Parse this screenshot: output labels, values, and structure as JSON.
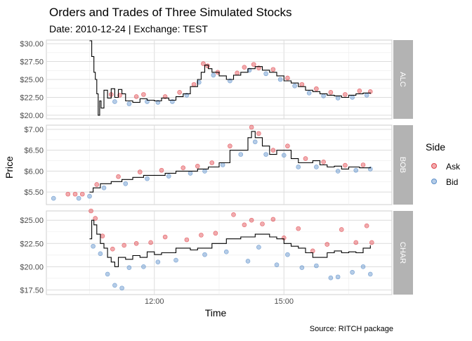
{
  "title": "Orders and Trades of Three Simulated Stocks",
  "subtitle": "Date: 2010-12-24 | Exchange: TEST",
  "caption": "Source: RITCH package",
  "colors": {
    "ask": "#e0454b",
    "bid": "#5b8fc9",
    "trade": "#000000",
    "strip_bg": "#b3b3b3",
    "grid": "#dcdcdc"
  },
  "chart_data": {
    "type": "scatter",
    "xlabel": "Time",
    "ylabel": "Price",
    "x_ticks": [
      "12:00",
      "15:00"
    ],
    "x_range": [
      "09:30",
      "17:30"
    ],
    "legend": {
      "title": "Side",
      "entries": [
        "Ask",
        "Bid"
      ],
      "position": "right"
    },
    "grid": true,
    "panels": [
      {
        "name": "ALC",
        "ylim": [
          19.5,
          30.5
        ],
        "y_ticks": [
          20.0,
          22.5,
          25.0,
          27.5,
          30.0
        ],
        "y_tick_labels": [
          "$20.00",
          "$22.50",
          "$25.00",
          "$27.50",
          "$30.00"
        ],
        "trade": [
          [
            "10:30",
            30.4
          ],
          [
            "10:33",
            28.2
          ],
          [
            "10:36",
            26.0
          ],
          [
            "10:38",
            25.0
          ],
          [
            "10:40",
            23.0
          ],
          [
            "10:42",
            20.0
          ],
          [
            "10:44",
            22.0
          ],
          [
            "10:46",
            21.0
          ],
          [
            "10:50",
            23.5
          ],
          [
            "10:55",
            22.4
          ],
          [
            "11:00",
            23.7
          ],
          [
            "11:05",
            22.5
          ],
          [
            "11:10",
            23.6
          ],
          [
            "11:15",
            23.0
          ],
          [
            "11:20",
            22.0
          ],
          [
            "11:30",
            21.8
          ],
          [
            "11:40",
            22.3
          ],
          [
            "11:50",
            22.1
          ],
          [
            "12:00",
            22.0
          ],
          [
            "12:10",
            22.4
          ],
          [
            "12:20",
            22.1
          ],
          [
            "12:30",
            22.6
          ],
          [
            "12:40",
            23.0
          ],
          [
            "12:50",
            24.0
          ],
          [
            "13:00",
            25.0
          ],
          [
            "13:05",
            26.0
          ],
          [
            "13:10",
            27.0
          ],
          [
            "13:15",
            26.5
          ],
          [
            "13:20",
            26.0
          ],
          [
            "13:30",
            25.5
          ],
          [
            "13:40",
            25.0
          ],
          [
            "13:50",
            25.6
          ],
          [
            "14:00",
            26.0
          ],
          [
            "14:10",
            26.5
          ],
          [
            "14:20",
            26.8
          ],
          [
            "14:30",
            26.3
          ],
          [
            "14:40",
            26.0
          ],
          [
            "14:50",
            25.5
          ],
          [
            "15:00",
            24.8
          ],
          [
            "15:10",
            24.5
          ],
          [
            "15:20",
            24.0
          ],
          [
            "15:30",
            23.5
          ],
          [
            "15:40",
            23.3
          ],
          [
            "15:50",
            23.0
          ],
          [
            "16:00",
            22.8
          ],
          [
            "16:10",
            22.7
          ],
          [
            "16:20",
            22.5
          ],
          [
            "16:30",
            22.8
          ],
          [
            "16:40",
            23.0
          ],
          [
            "16:50",
            23.1
          ],
          [
            "17:00",
            23.0
          ]
        ],
        "ask": [
          [
            "11:00",
            22.9
          ],
          [
            "11:12",
            22.8
          ],
          [
            "11:35",
            22.6
          ],
          [
            "11:45",
            22.9
          ],
          [
            "12:15",
            22.6
          ],
          [
            "12:35",
            23.2
          ],
          [
            "12:55",
            24.3
          ],
          [
            "13:08",
            27.2
          ],
          [
            "13:14",
            26.9
          ],
          [
            "13:28",
            26.0
          ],
          [
            "13:55",
            25.9
          ],
          [
            "14:05",
            26.7
          ],
          [
            "14:18",
            27.1
          ],
          [
            "14:25",
            26.6
          ],
          [
            "14:45",
            26.4
          ],
          [
            "15:05",
            25.2
          ],
          [
            "15:25",
            24.3
          ],
          [
            "15:45",
            23.7
          ],
          [
            "16:05",
            23.2
          ],
          [
            "16:25",
            22.9
          ],
          [
            "16:45",
            23.4
          ],
          [
            "17:00",
            23.3
          ]
        ],
        "bid": [
          [
            "11:05",
            21.9
          ],
          [
            "11:25",
            21.6
          ],
          [
            "11:50",
            21.9
          ],
          [
            "12:05",
            21.8
          ],
          [
            "12:25",
            21.9
          ],
          [
            "12:45",
            22.8
          ],
          [
            "13:02",
            24.6
          ],
          [
            "13:22",
            25.6
          ],
          [
            "13:45",
            24.8
          ],
          [
            "14:12",
            26.3
          ],
          [
            "14:35",
            25.8
          ],
          [
            "14:55",
            25.0
          ],
          [
            "15:15",
            24.1
          ],
          [
            "15:35",
            23.1
          ],
          [
            "15:55",
            22.7
          ],
          [
            "16:15",
            22.4
          ],
          [
            "16:35",
            22.5
          ],
          [
            "16:55",
            22.8
          ]
        ]
      },
      {
        "name": "BOB",
        "ylim": [
          5.2,
          7.1
        ],
        "y_ticks": [
          5.5,
          6.0,
          6.5,
          7.0
        ],
        "y_tick_labels": [
          "$5.50",
          "$6.00",
          "$6.50",
          "$7.00"
        ],
        "trade": [
          [
            "10:30",
            5.5
          ],
          [
            "10:35",
            5.6
          ],
          [
            "10:45",
            5.7
          ],
          [
            "11:00",
            5.75
          ],
          [
            "11:15",
            5.8
          ],
          [
            "11:30",
            5.85
          ],
          [
            "11:45",
            5.9
          ],
          [
            "12:00",
            5.9
          ],
          [
            "12:15",
            5.95
          ],
          [
            "12:30",
            6.0
          ],
          [
            "12:45",
            6.0
          ],
          [
            "13:00",
            6.05
          ],
          [
            "13:15",
            6.1
          ],
          [
            "13:30",
            6.2
          ],
          [
            "13:45",
            6.5
          ],
          [
            "14:00",
            6.5
          ],
          [
            "14:10",
            6.8
          ],
          [
            "14:15",
            6.95
          ],
          [
            "14:20",
            6.8
          ],
          [
            "14:30",
            6.6
          ],
          [
            "14:40",
            6.4
          ],
          [
            "14:50",
            6.5
          ],
          [
            "15:00",
            6.5
          ],
          [
            "15:10",
            6.3
          ],
          [
            "15:20",
            6.2
          ],
          [
            "15:30",
            6.2
          ],
          [
            "15:40",
            6.25
          ],
          [
            "15:50",
            6.15
          ],
          [
            "16:00",
            6.1
          ],
          [
            "16:10",
            6.12
          ],
          [
            "16:20",
            6.05
          ],
          [
            "16:30",
            6.1
          ],
          [
            "16:45",
            6.08
          ],
          [
            "17:00",
            6.1
          ]
        ],
        "ask": [
          [
            "10:00",
            5.45
          ],
          [
            "10:10",
            5.45
          ],
          [
            "10:20",
            5.45
          ],
          [
            "10:40",
            5.68
          ],
          [
            "11:10",
            5.87
          ],
          [
            "11:40",
            5.98
          ],
          [
            "12:10",
            6.02
          ],
          [
            "12:40",
            6.08
          ],
          [
            "13:00",
            6.12
          ],
          [
            "13:20",
            6.2
          ],
          [
            "13:45",
            6.6
          ],
          [
            "14:15",
            7.05
          ],
          [
            "14:25",
            6.9
          ],
          [
            "14:45",
            6.5
          ],
          [
            "15:05",
            6.6
          ],
          [
            "15:30",
            6.3
          ],
          [
            "15:55",
            6.22
          ],
          [
            "16:25",
            6.14
          ],
          [
            "16:50",
            6.15
          ]
        ],
        "bid": [
          [
            "09:40",
            5.35
          ],
          [
            "10:15",
            5.35
          ],
          [
            "10:30",
            5.4
          ],
          [
            "10:50",
            5.6
          ],
          [
            "11:20",
            5.7
          ],
          [
            "11:50",
            5.82
          ],
          [
            "12:20",
            5.88
          ],
          [
            "12:50",
            5.95
          ],
          [
            "13:10",
            6.0
          ],
          [
            "13:35",
            6.15
          ],
          [
            "14:00",
            6.4
          ],
          [
            "14:20",
            6.7
          ],
          [
            "14:35",
            6.4
          ],
          [
            "15:00",
            6.38
          ],
          [
            "15:20",
            6.1
          ],
          [
            "15:45",
            6.1
          ],
          [
            "16:15",
            6.0
          ],
          [
            "16:40",
            6.02
          ],
          [
            "17:00",
            6.05
          ]
        ]
      },
      {
        "name": "CHAR",
        "ylim": [
          17.0,
          26.0
        ],
        "y_ticks": [
          17.5,
          20.0,
          22.5,
          25.0
        ],
        "y_tick_labels": [
          "$17.50",
          "$20.00",
          "$22.50",
          "$25.00"
        ],
        "trade": [
          [
            "10:30",
            23.0
          ],
          [
            "10:33",
            25.0
          ],
          [
            "10:36",
            24.5
          ],
          [
            "10:40",
            23.5
          ],
          [
            "10:45",
            22.5
          ],
          [
            "10:50",
            22.0
          ],
          [
            "10:55",
            21.0
          ],
          [
            "11:00",
            20.5
          ],
          [
            "11:05",
            20.0
          ],
          [
            "11:10",
            21.0
          ],
          [
            "11:20",
            20.8
          ],
          [
            "11:30",
            21.2
          ],
          [
            "11:40",
            21.0
          ],
          [
            "11:50",
            21.6
          ],
          [
            "12:00",
            21.3
          ],
          [
            "12:10",
            21.5
          ],
          [
            "12:30",
            22.0
          ],
          [
            "12:50",
            21.8
          ],
          [
            "13:00",
            22.0
          ],
          [
            "13:20",
            22.5
          ],
          [
            "13:40",
            23.0
          ],
          [
            "14:00",
            23.2
          ],
          [
            "14:20",
            23.5
          ],
          [
            "14:40",
            23.2
          ],
          [
            "14:50",
            23.0
          ],
          [
            "15:00",
            22.5
          ],
          [
            "15:10",
            22.2
          ],
          [
            "15:20",
            22.0
          ],
          [
            "15:30",
            21.5
          ],
          [
            "15:40",
            21.0
          ],
          [
            "15:50",
            21.0
          ],
          [
            "16:00",
            21.5
          ],
          [
            "16:10",
            21.7
          ],
          [
            "16:20",
            21.5
          ],
          [
            "16:30",
            21.6
          ],
          [
            "16:40",
            21.5
          ],
          [
            "16:50",
            22.0
          ],
          [
            "17:00",
            22.3
          ]
        ],
        "ask": [
          [
            "10:32",
            26.0
          ],
          [
            "10:38",
            25.2
          ],
          [
            "10:48",
            23.3
          ],
          [
            "11:02",
            21.9
          ],
          [
            "11:18",
            22.3
          ],
          [
            "11:35",
            22.5
          ],
          [
            "11:55",
            22.6
          ],
          [
            "12:15",
            23.2
          ],
          [
            "12:45",
            22.9
          ],
          [
            "13:05",
            23.4
          ],
          [
            "13:25",
            23.6
          ],
          [
            "13:50",
            25.6
          ],
          [
            "14:05",
            24.5
          ],
          [
            "14:15",
            25.0
          ],
          [
            "14:30",
            24.6
          ],
          [
            "14:45",
            25.1
          ],
          [
            "15:00",
            23.1
          ],
          [
            "15:20",
            24.1
          ],
          [
            "15:40",
            21.7
          ],
          [
            "16:00",
            22.4
          ],
          [
            "16:20",
            24.0
          ],
          [
            "16:40",
            22.6
          ],
          [
            "16:55",
            24.4
          ],
          [
            "17:02",
            22.6
          ]
        ],
        "bid": [
          [
            "10:35",
            22.2
          ],
          [
            "10:45",
            21.4
          ],
          [
            "10:55",
            19.2
          ],
          [
            "11:05",
            18.0
          ],
          [
            "11:15",
            17.7
          ],
          [
            "11:25",
            19.9
          ],
          [
            "11:45",
            20.0
          ],
          [
            "12:05",
            20.5
          ],
          [
            "12:30",
            20.7
          ],
          [
            "13:10",
            21.3
          ],
          [
            "13:40",
            21.6
          ],
          [
            "14:10",
            20.6
          ],
          [
            "14:25",
            22.1
          ],
          [
            "14:50",
            20.2
          ],
          [
            "15:05",
            21.3
          ],
          [
            "15:25",
            19.9
          ],
          [
            "15:45",
            20.1
          ],
          [
            "16:05",
            18.8
          ],
          [
            "16:15",
            18.9
          ],
          [
            "16:35",
            19.4
          ],
          [
            "16:50",
            20.0
          ],
          [
            "17:00",
            19.2
          ]
        ]
      }
    ]
  }
}
